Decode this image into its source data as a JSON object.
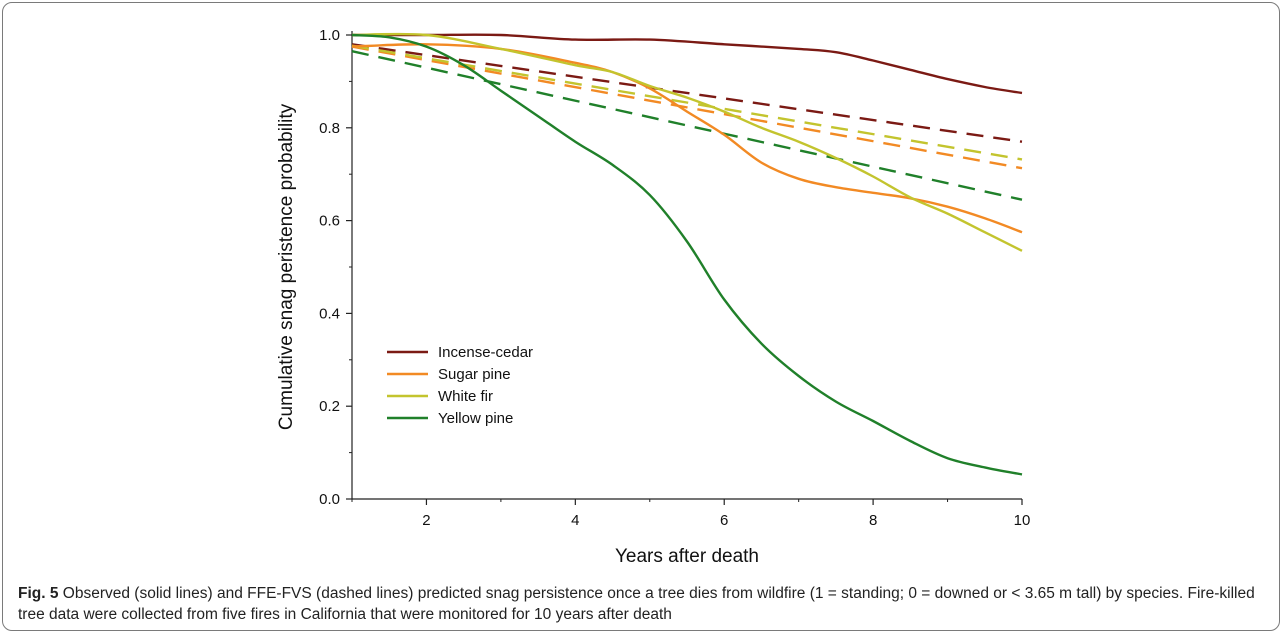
{
  "chart_data": {
    "type": "line",
    "xlabel": "Years after death",
    "ylabel": "Cumulative snag peristence probability",
    "xlim": [
      1,
      10
    ],
    "ylim": [
      0,
      1.0
    ],
    "x_ticks": [
      2,
      4,
      6,
      8,
      10
    ],
    "y_ticks": [
      "0.0",
      "0.2",
      "0.4",
      "0.6",
      "0.8",
      "1.0"
    ],
    "grid": false,
    "legend_position": "lower-left",
    "legend": [
      {
        "label": "Incense-cedar",
        "color": "#7b1a14"
      },
      {
        "label": "Sugar pine",
        "color": "#f28a24"
      },
      {
        "label": "White fir",
        "color": "#c3c42e"
      },
      {
        "label": "Yellow pine",
        "color": "#20802a"
      }
    ],
    "series": [
      {
        "name": "Incense-cedar",
        "style": "solid",
        "color": "#7b1a14",
        "x": [
          1,
          2,
          3,
          4,
          5,
          6,
          7,
          7.5,
          8,
          8.5,
          9,
          9.5,
          10
        ],
        "y": [
          1.0,
          1.0,
          1.0,
          0.99,
          0.99,
          0.98,
          0.97,
          0.963,
          0.945,
          0.925,
          0.905,
          0.888,
          0.875
        ]
      },
      {
        "name": "Sugar pine",
        "style": "solid",
        "color": "#f28a24",
        "x": [
          1,
          2,
          3,
          4,
          4.5,
          5,
          5.5,
          6,
          6.5,
          7,
          7.5,
          8,
          8.5,
          9,
          9.5,
          10
        ],
        "y": [
          0.975,
          0.98,
          0.97,
          0.94,
          0.92,
          0.885,
          0.835,
          0.785,
          0.725,
          0.69,
          0.672,
          0.66,
          0.648,
          0.63,
          0.605,
          0.575
        ]
      },
      {
        "name": "White fir",
        "style": "solid",
        "color": "#c3c42e",
        "x": [
          1,
          2,
          3,
          4,
          4.5,
          5,
          5.5,
          6,
          6.5,
          7,
          7.5,
          8,
          8.5,
          9,
          9.5,
          10
        ],
        "y": [
          1.0,
          1.0,
          0.97,
          0.935,
          0.92,
          0.89,
          0.865,
          0.835,
          0.8,
          0.77,
          0.735,
          0.695,
          0.65,
          0.615,
          0.575,
          0.535
        ]
      },
      {
        "name": "Yellow pine",
        "style": "solid",
        "color": "#20802a",
        "x": [
          1,
          1.5,
          2,
          2.5,
          3,
          3.5,
          4,
          4.5,
          5,
          5.5,
          6,
          6.5,
          7,
          7.5,
          8,
          8.5,
          9,
          9.5,
          10
        ],
        "y": [
          1.0,
          0.995,
          0.975,
          0.935,
          0.88,
          0.825,
          0.77,
          0.72,
          0.655,
          0.555,
          0.43,
          0.335,
          0.265,
          0.21,
          0.168,
          0.125,
          0.088,
          0.068,
          0.053
        ]
      },
      {
        "name": "Incense-cedar",
        "style": "dashed",
        "color": "#7b1a14",
        "x": [
          1,
          10
        ],
        "y": [
          0.98,
          0.77
        ]
      },
      {
        "name": "Sugar pine",
        "style": "dashed",
        "color": "#f28a24",
        "x": [
          1,
          10
        ],
        "y": [
          0.975,
          0.713
        ]
      },
      {
        "name": "White fir",
        "style": "dashed",
        "color": "#c3c42e",
        "x": [
          1,
          10
        ],
        "y": [
          0.977,
          0.732
        ]
      },
      {
        "name": "Yellow pine",
        "style": "dashed",
        "color": "#20802a",
        "x": [
          1,
          10
        ],
        "y": [
          0.965,
          0.645
        ]
      }
    ]
  },
  "caption": {
    "label": "Fig. 5",
    "text": " Observed (solid lines) and FFE-FVS (dashed lines) predicted snag persistence once a tree dies from wildfire (1 = standing; 0 = downed or < 3.65 m tall) by species. Fire-killed tree data were collected from five fires in California that were monitored for 10 years after death"
  }
}
